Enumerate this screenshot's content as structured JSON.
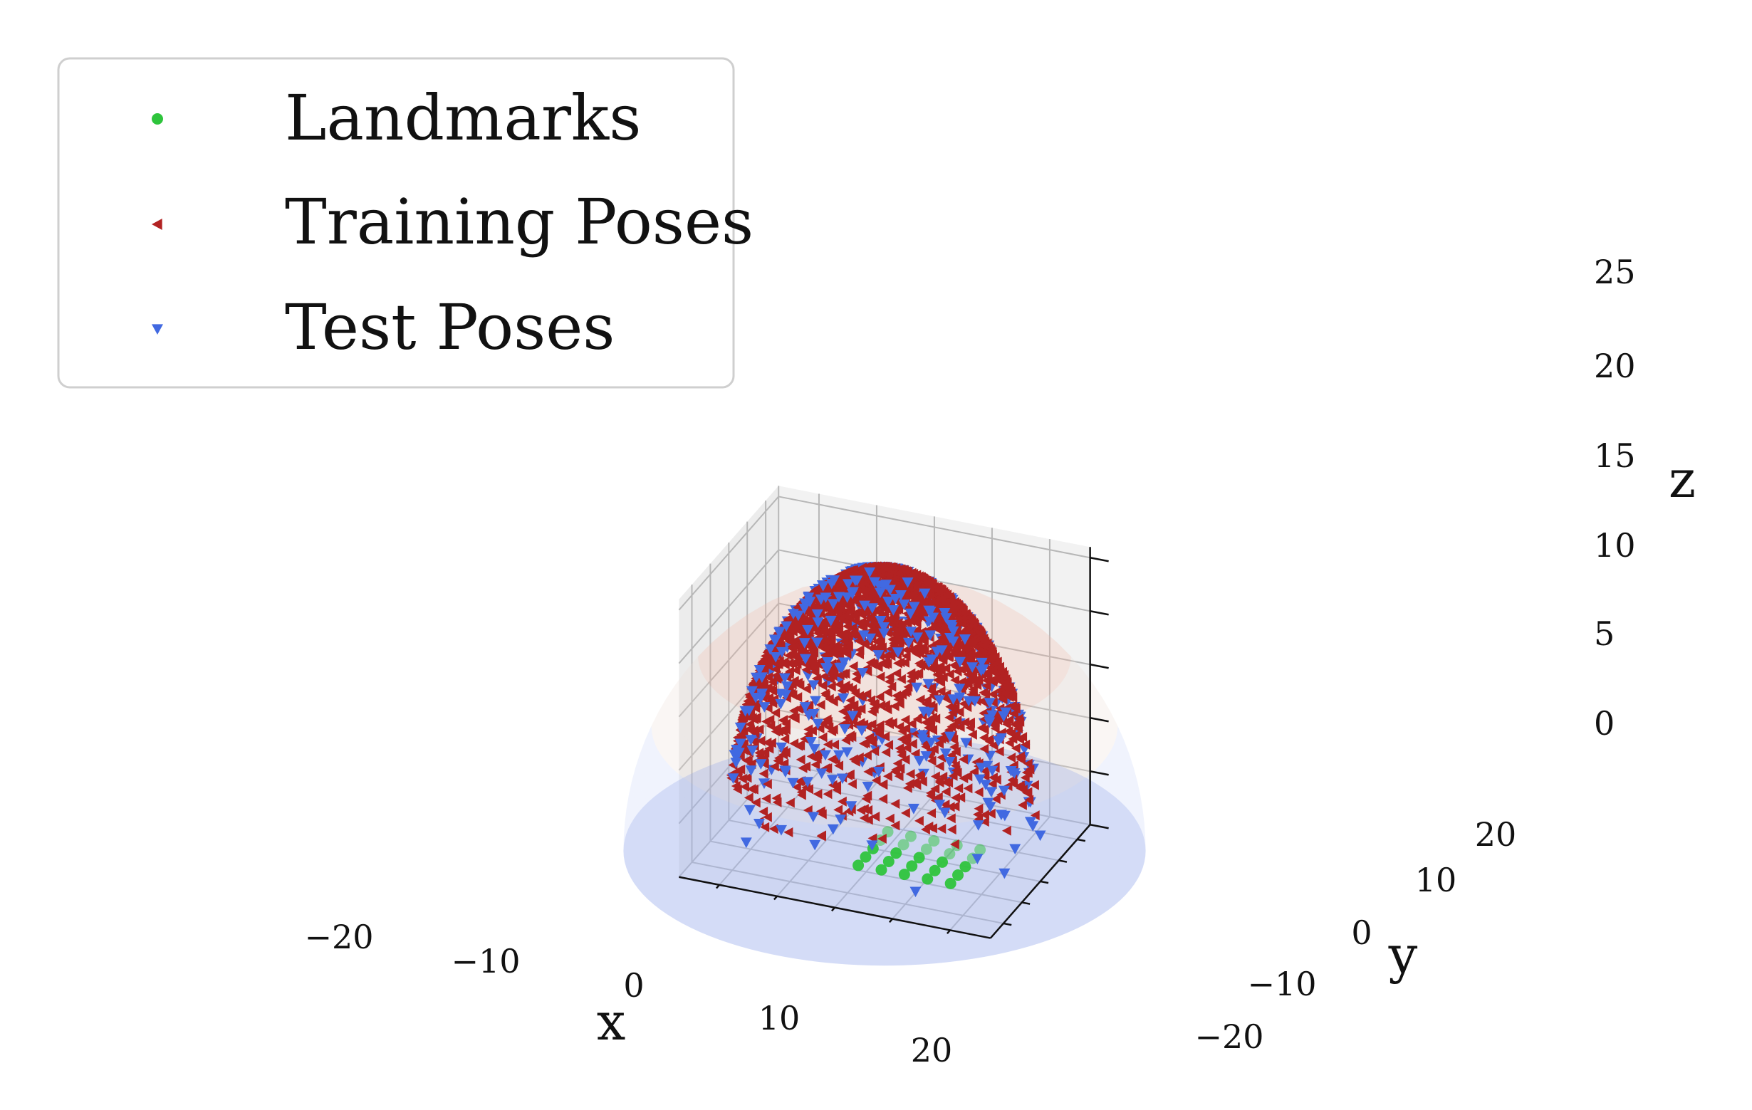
{
  "chart_data": {
    "type": "scatter",
    "projection": "3d",
    "title": "",
    "xlabel": "x",
    "ylabel": "y",
    "zlabel": "z",
    "xlim": [
      -27,
      27
    ],
    "ylim": [
      -27,
      27
    ],
    "zlim": [
      0,
      26
    ],
    "xticks": [
      -20,
      -10,
      0,
      10,
      20
    ],
    "yticks": [
      -20,
      -10,
      0,
      10,
      20
    ],
    "zticks": [
      0,
      5,
      10,
      15,
      20,
      25
    ],
    "xtick_labels": [
      "−20",
      "−10",
      "0",
      "10",
      "20"
    ],
    "ytick_labels": [
      "−20",
      "−10",
      "0",
      "10",
      "20"
    ],
    "ztick_labels": [
      "0",
      "5",
      "10",
      "15",
      "20",
      "25"
    ],
    "grid": true,
    "legend_position": "top-left",
    "hemisphere": {
      "radius": 26,
      "colormap": "coolwarm"
    },
    "series": [
      {
        "name": "Landmarks",
        "marker": "circle",
        "color": "#2ec43c",
        "pattern": "grid",
        "z": 0,
        "x_values": [
          -2,
          2,
          6,
          10,
          14
        ],
        "y_values": [
          -8,
          -4,
          0,
          4,
          8
        ]
      },
      {
        "name": "Training Poses",
        "marker": "triangle-left",
        "color": "#b22222",
        "pattern": "hemisphere-surface",
        "radius": 26,
        "z_range": [
          4,
          26
        ],
        "count": 2600
      },
      {
        "name": "Test Poses",
        "marker": "triangle-down",
        "color": "#4169e1",
        "pattern": "hemisphere-surface",
        "radius": 26,
        "z_range": [
          0,
          26
        ],
        "count": 420
      }
    ]
  }
}
